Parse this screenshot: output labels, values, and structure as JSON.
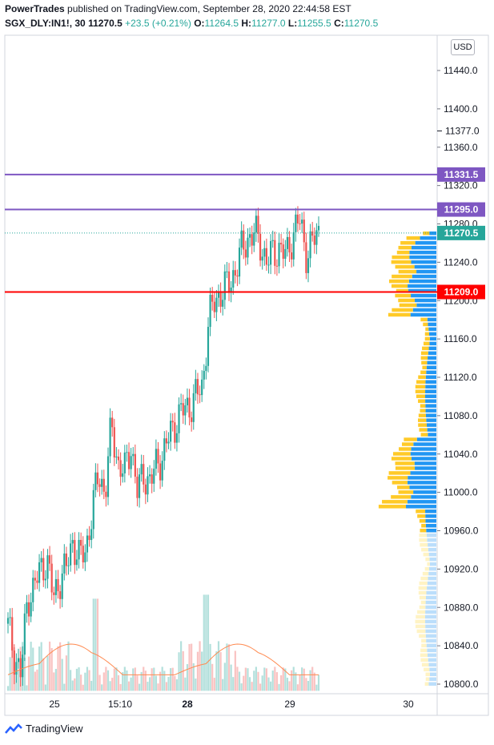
{
  "header": {
    "author": "PowerTrades",
    "published_text": "published on TradingView.com, September 28, 2020 22:44:58 EST",
    "symbol": "SGX_DLY:IN1!, 30",
    "last": "11270.5",
    "change": "+23.5 (+0.21%)",
    "o_label": "O:",
    "o_value": "11264.5",
    "h_label": "H:",
    "h_value": "11277.0",
    "l_label": "L:",
    "l_value": "11255.5",
    "c_label": "C:",
    "c_value": "11270.5"
  },
  "currency_button": "USD",
  "footer": {
    "brand": "TradingView",
    "icon": "tradingview-logo-icon"
  },
  "colors": {
    "up": "#26a69a",
    "down": "#ef5350",
    "level_purple": "#7e57c2",
    "level_red": "#ff0000",
    "vp_blue": "#2196f3",
    "vp_orange": "#ffca28",
    "ma": "#ff8a50"
  },
  "chart_data": {
    "type": "candlestick",
    "y_axis_ticks": [
      11440,
      11400,
      11360,
      11320,
      11280,
      11240,
      11200,
      11160,
      11120,
      11080,
      11040,
      11000,
      10960,
      10920,
      10880,
      10840,
      10800
    ],
    "y_axis_extra_label": "11377.0",
    "ylim": [
      10790,
      11480
    ],
    "x_axis_labels": [
      "25",
      "15:10",
      "28",
      "29",
      "30"
    ],
    "bold_x_labels": [
      "28"
    ],
    "horizontal_levels": [
      {
        "value": "11331.5",
        "color": "#7e57c2"
      },
      {
        "value": "11295.0",
        "color": "#7e57c2"
      },
      {
        "value": "11209.0",
        "color": "#ff0000"
      }
    ],
    "last_price": "11270.5",
    "close_path": [
      10860,
      10830,
      10810,
      10890,
      10900,
      10920,
      10930,
      10890,
      10910,
      10920,
      10950,
      10930,
      10940,
      10980,
      11020,
      11000,
      11070,
      11030,
      11020,
      11050,
      11000,
      11020,
      11010,
      11030,
      11040,
      11060,
      11075,
      11085,
      11090,
      11100,
      11110,
      11180,
      11200,
      11210,
      11215,
      11230,
      11250,
      11265,
      11270,
      11260,
      11240,
      11250,
      11255,
      11245,
      11270,
      11285,
      11250,
      11260,
      11270
    ],
    "volume_profile_note": "volume profile histogram on right edge, blue/orange split"
  }
}
